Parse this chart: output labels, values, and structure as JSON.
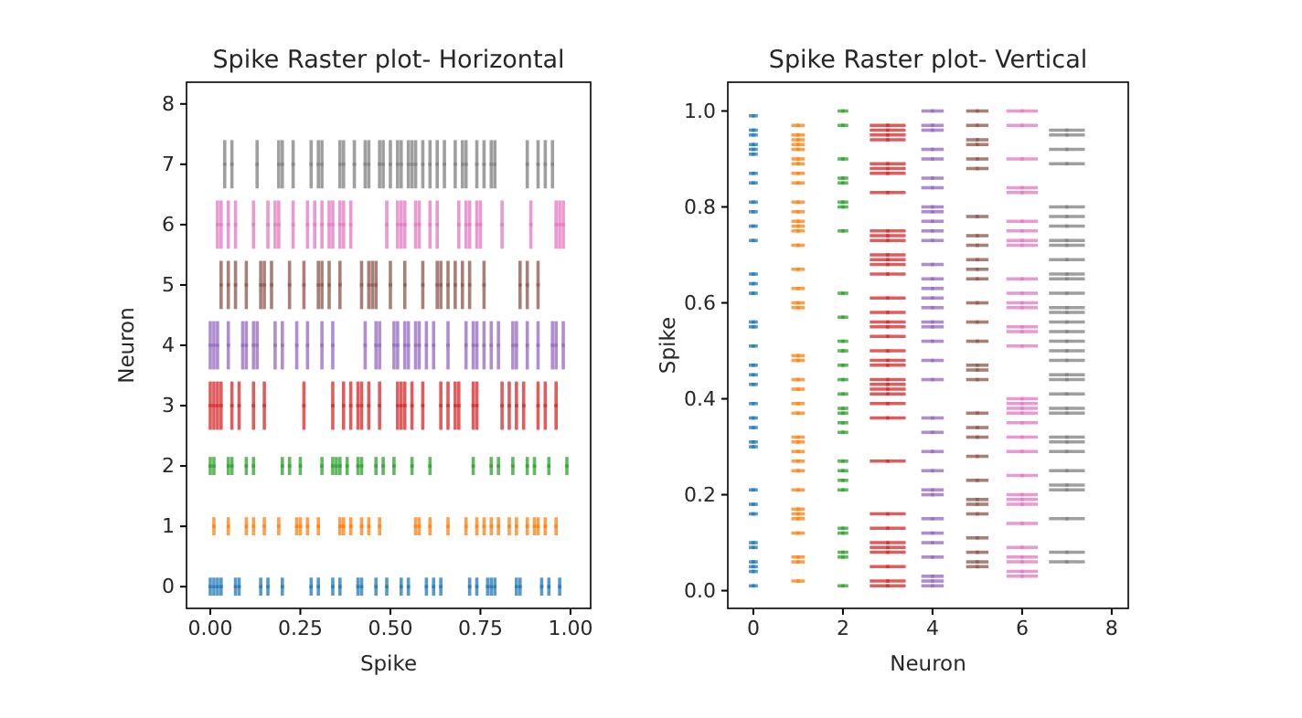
{
  "chart_data": [
    {
      "type": "scatter",
      "title": "Spike Raster plot- Horizontal",
      "xlabel": "Spike",
      "ylabel": "Neuron",
      "xlim": [
        -0.066,
        1.056
      ],
      "ylim": [
        -0.36,
        8.36
      ],
      "xticks": [
        {
          "value": 0,
          "label": "0.00"
        },
        {
          "value": 0.25,
          "label": "0.25"
        },
        {
          "value": 0.5,
          "label": "0.50"
        },
        {
          "value": 0.75,
          "label": "0.75"
        },
        {
          "value": 1,
          "label": "1.00"
        }
      ],
      "yticks": [
        0,
        1,
        2,
        3,
        4,
        5,
        6,
        7,
        8
      ],
      "series": [
        {
          "color": "#1f77b4",
          "x": [
            0.0,
            0.01,
            0.02,
            0.03,
            0.07,
            0.08,
            0.14,
            0.16,
            0.2,
            0.28,
            0.3,
            0.34,
            0.36,
            0.41,
            0.42,
            0.46,
            0.49,
            0.53,
            0.55,
            0.6,
            0.62,
            0.64,
            0.72,
            0.74,
            0.77,
            0.78,
            0.79,
            0.85,
            0.86,
            0.92,
            0.94,
            0.97
          ],
          "values": [
            0,
            0,
            0,
            0,
            0,
            0,
            0,
            0,
            0,
            0,
            0,
            0,
            0,
            0,
            0,
            0,
            0,
            0,
            0,
            0,
            0,
            0,
            0,
            0,
            0,
            0,
            0,
            0,
            0,
            0,
            0,
            0
          ],
          "errors": [
            0.15,
            0.15,
            0.15,
            0.15,
            0.15,
            0.15,
            0.15,
            0.15,
            0.15,
            0.15,
            0.15,
            0.15,
            0.15,
            0.15,
            0.15,
            0.15,
            0.15,
            0.15,
            0.15,
            0.15,
            0.15,
            0.15,
            0.15,
            0.15,
            0.15,
            0.15,
            0.15,
            0.15,
            0.15,
            0.15,
            0.15,
            0.15
          ]
        },
        {
          "color": "#ff7f0e",
          "x": [
            0.01,
            0.05,
            0.1,
            0.12,
            0.15,
            0.19,
            0.24,
            0.25,
            0.27,
            0.3,
            0.36,
            0.37,
            0.39,
            0.42,
            0.44,
            0.47,
            0.57,
            0.58,
            0.61,
            0.66,
            0.71,
            0.74,
            0.76,
            0.78,
            0.8,
            0.83,
            0.85,
            0.88,
            0.9,
            0.91,
            0.93,
            0.96
          ],
          "values": [
            1,
            1,
            1,
            1,
            1,
            1,
            1,
            1,
            1,
            1,
            1,
            1,
            1,
            1,
            1,
            1,
            1,
            1,
            1,
            1,
            1,
            1,
            1,
            1,
            1,
            1,
            1,
            1,
            1,
            1,
            1,
            1
          ],
          "errors": [
            0.15,
            0.15,
            0.15,
            0.15,
            0.15,
            0.15,
            0.15,
            0.15,
            0.15,
            0.15,
            0.15,
            0.15,
            0.15,
            0.15,
            0.15,
            0.15,
            0.15,
            0.15,
            0.15,
            0.15,
            0.15,
            0.15,
            0.15,
            0.15,
            0.15,
            0.15,
            0.15,
            0.15,
            0.15,
            0.15,
            0.15,
            0.15
          ]
        },
        {
          "color": "#2ca02c",
          "x": [
            0.0,
            0.01,
            0.05,
            0.06,
            0.1,
            0.12,
            0.2,
            0.22,
            0.25,
            0.31,
            0.34,
            0.35,
            0.36,
            0.38,
            0.41,
            0.42,
            0.46,
            0.48,
            0.51,
            0.56,
            0.61,
            0.73,
            0.78,
            0.8,
            0.84,
            0.88,
            0.9,
            0.94,
            0.99
          ],
          "values": [
            2,
            2,
            2,
            2,
            2,
            2,
            2,
            2,
            2,
            2,
            2,
            2,
            2,
            2,
            2,
            2,
            2,
            2,
            2,
            2,
            2,
            2,
            2,
            2,
            2,
            2,
            2,
            2,
            2
          ],
          "errors": [
            0.15,
            0.15,
            0.15,
            0.15,
            0.15,
            0.15,
            0.15,
            0.15,
            0.15,
            0.15,
            0.15,
            0.15,
            0.15,
            0.15,
            0.15,
            0.15,
            0.15,
            0.15,
            0.15,
            0.15,
            0.15,
            0.15,
            0.15,
            0.15,
            0.15,
            0.15,
            0.15,
            0.15,
            0.15
          ]
        },
        {
          "color": "#d62728",
          "x": [
            0.0,
            0.01,
            0.02,
            0.03,
            0.06,
            0.08,
            0.12,
            0.15,
            0.26,
            0.34,
            0.37,
            0.39,
            0.41,
            0.42,
            0.44,
            0.47,
            0.52,
            0.53,
            0.54,
            0.56,
            0.59,
            0.64,
            0.66,
            0.68,
            0.69,
            0.73,
            0.74,
            0.81,
            0.83,
            0.85,
            0.87,
            0.91,
            0.93,
            0.96
          ],
          "values": [
            3,
            3,
            3,
            3,
            3,
            3,
            3,
            3,
            3,
            3,
            3,
            3,
            3,
            3,
            3,
            3,
            3,
            3,
            3,
            3,
            3,
            3,
            3,
            3,
            3,
            3,
            3,
            3,
            3,
            3,
            3,
            3,
            3,
            3
          ],
          "errors": [
            0.4,
            0.4,
            0.4,
            0.4,
            0.4,
            0.4,
            0.4,
            0.4,
            0.4,
            0.4,
            0.4,
            0.4,
            0.4,
            0.4,
            0.4,
            0.4,
            0.4,
            0.4,
            0.4,
            0.4,
            0.4,
            0.4,
            0.4,
            0.4,
            0.4,
            0.4,
            0.4,
            0.4,
            0.4,
            0.4,
            0.4,
            0.4,
            0.4,
            0.4
          ]
        },
        {
          "color": "#9467bd",
          "x": [
            0.0,
            0.01,
            0.02,
            0.05,
            0.09,
            0.1,
            0.12,
            0.13,
            0.18,
            0.2,
            0.24,
            0.27,
            0.31,
            0.34,
            0.43,
            0.46,
            0.47,
            0.51,
            0.52,
            0.54,
            0.55,
            0.57,
            0.58,
            0.6,
            0.62,
            0.66,
            0.71,
            0.73,
            0.74,
            0.76,
            0.78,
            0.8,
            0.84,
            0.85,
            0.88,
            0.91,
            0.95,
            0.96,
            0.98
          ],
          "values": [
            4,
            4,
            4,
            4,
            4,
            4,
            4,
            4,
            4,
            4,
            4,
            4,
            4,
            4,
            4,
            4,
            4,
            4,
            4,
            4,
            4,
            4,
            4,
            4,
            4,
            4,
            4,
            4,
            4,
            4,
            4,
            4,
            4,
            4,
            4,
            4,
            4,
            4,
            4
          ],
          "errors": [
            0.4,
            0.4,
            0.4,
            0.4,
            0.4,
            0.4,
            0.4,
            0.4,
            0.4,
            0.4,
            0.4,
            0.4,
            0.4,
            0.4,
            0.4,
            0.4,
            0.4,
            0.4,
            0.4,
            0.4,
            0.4,
            0.4,
            0.4,
            0.4,
            0.4,
            0.4,
            0.4,
            0.4,
            0.4,
            0.4,
            0.4,
            0.4,
            0.4,
            0.4,
            0.4,
            0.4,
            0.4,
            0.4,
            0.4
          ]
        },
        {
          "color": "#8c564b",
          "x": [
            0.03,
            0.05,
            0.07,
            0.1,
            0.14,
            0.15,
            0.17,
            0.22,
            0.26,
            0.3,
            0.31,
            0.33,
            0.36,
            0.42,
            0.44,
            0.45,
            0.46,
            0.5,
            0.54,
            0.59,
            0.63,
            0.64,
            0.66,
            0.68,
            0.7,
            0.72,
            0.76,
            0.86,
            0.88,
            0.91
          ],
          "values": [
            5,
            5,
            5,
            5,
            5,
            5,
            5,
            5,
            5,
            5,
            5,
            5,
            5,
            5,
            5,
            5,
            5,
            5,
            5,
            5,
            5,
            5,
            5,
            5,
            5,
            5,
            5,
            5,
            5,
            5
          ],
          "errors": [
            0.4,
            0.4,
            0.4,
            0.4,
            0.4,
            0.4,
            0.4,
            0.4,
            0.4,
            0.4,
            0.4,
            0.4,
            0.4,
            0.4,
            0.4,
            0.4,
            0.4,
            0.4,
            0.4,
            0.4,
            0.4,
            0.4,
            0.4,
            0.4,
            0.4,
            0.4,
            0.4,
            0.4,
            0.4,
            0.4
          ]
        },
        {
          "color": "#e377c2",
          "x": [
            0.02,
            0.03,
            0.05,
            0.07,
            0.12,
            0.16,
            0.18,
            0.19,
            0.23,
            0.27,
            0.29,
            0.31,
            0.33,
            0.34,
            0.36,
            0.37,
            0.39,
            0.49,
            0.52,
            0.53,
            0.54,
            0.57,
            0.58,
            0.61,
            0.63,
            0.69,
            0.71,
            0.72,
            0.74,
            0.75,
            0.81,
            0.89,
            0.96,
            0.97,
            0.98
          ],
          "values": [
            6,
            6,
            6,
            6,
            6,
            6,
            6,
            6,
            6,
            6,
            6,
            6,
            6,
            6,
            6,
            6,
            6,
            6,
            6,
            6,
            6,
            6,
            6,
            6,
            6,
            6,
            6,
            6,
            6,
            6,
            6,
            6,
            6,
            6,
            6
          ],
          "errors": [
            0.4,
            0.4,
            0.4,
            0.4,
            0.4,
            0.4,
            0.4,
            0.4,
            0.4,
            0.4,
            0.4,
            0.4,
            0.4,
            0.4,
            0.4,
            0.4,
            0.4,
            0.4,
            0.4,
            0.4,
            0.4,
            0.4,
            0.4,
            0.4,
            0.4,
            0.4,
            0.4,
            0.4,
            0.4,
            0.4,
            0.4,
            0.4,
            0.4,
            0.4,
            0.4
          ]
        },
        {
          "color": "#7f7f7f",
          "x": [
            0.04,
            0.06,
            0.13,
            0.19,
            0.2,
            0.23,
            0.28,
            0.3,
            0.31,
            0.36,
            0.37,
            0.4,
            0.43,
            0.44,
            0.47,
            0.48,
            0.5,
            0.52,
            0.53,
            0.55,
            0.56,
            0.57,
            0.59,
            0.61,
            0.63,
            0.65,
            0.68,
            0.7,
            0.71,
            0.74,
            0.76,
            0.78,
            0.79,
            0.88,
            0.91,
            0.93,
            0.95
          ],
          "values": [
            7,
            7,
            7,
            7,
            7,
            7,
            7,
            7,
            7,
            7,
            7,
            7,
            7,
            7,
            7,
            7,
            7,
            7,
            7,
            7,
            7,
            7,
            7,
            7,
            7,
            7,
            7,
            7,
            7,
            7,
            7,
            7,
            7,
            7,
            7,
            7,
            7
          ],
          "errors": [
            0.4,
            0.4,
            0.4,
            0.4,
            0.4,
            0.4,
            0.4,
            0.4,
            0.4,
            0.4,
            0.4,
            0.4,
            0.4,
            0.4,
            0.4,
            0.4,
            0.4,
            0.4,
            0.4,
            0.4,
            0.4,
            0.4,
            0.4,
            0.4,
            0.4,
            0.4,
            0.4,
            0.4,
            0.4,
            0.4,
            0.4,
            0.4,
            0.4,
            0.4,
            0.4,
            0.4,
            0.4
          ]
        }
      ]
    },
    {
      "type": "scatter",
      "title": "Spike Raster plot- Vertical",
      "xlabel": "Neuron",
      "ylabel": "Spike",
      "xlim": [
        -0.57,
        8.37
      ],
      "ylim": [
        -0.037,
        1.06
      ],
      "xticks": [
        0,
        2,
        4,
        6,
        8
      ],
      "yticks": [
        {
          "value": 0,
          "label": "0.0"
        },
        {
          "value": 0.2,
          "label": "0.2"
        },
        {
          "value": 0.4,
          "label": "0.4"
        },
        {
          "value": 0.6,
          "label": "0.6"
        },
        {
          "value": 0.8,
          "label": "0.8"
        },
        {
          "value": 1,
          "label": "1.0"
        }
      ],
      "series": [
        {
          "color": "#1f77b4",
          "values": [
            0.99,
            0.96,
            0.95,
            0.93,
            0.92,
            0.91,
            0.87,
            0.85,
            0.81,
            0.79,
            0.76,
            0.73,
            0.66,
            0.64,
            0.62,
            0.56,
            0.55,
            0.51,
            0.47,
            0.45,
            0.43,
            0.39,
            0.36,
            0.34,
            0.31,
            0.3,
            0.21,
            0.18,
            0.16,
            0.1,
            0.09,
            0.06,
            0.05,
            0.04,
            0.01
          ],
          "x": [
            0,
            0,
            0,
            0,
            0,
            0,
            0,
            0,
            0,
            0,
            0,
            0,
            0,
            0,
            0,
            0,
            0,
            0,
            0,
            0,
            0,
            0,
            0,
            0,
            0,
            0,
            0,
            0,
            0,
            0,
            0,
            0,
            0,
            0,
            0
          ],
          "xerrors": [
            0.1,
            0.1,
            0.1,
            0.1,
            0.1,
            0.1,
            0.1,
            0.1,
            0.1,
            0.1,
            0.1,
            0.1,
            0.1,
            0.1,
            0.1,
            0.1,
            0.1,
            0.1,
            0.1,
            0.1,
            0.1,
            0.1,
            0.1,
            0.1,
            0.1,
            0.1,
            0.1,
            0.1,
            0.1,
            0.1,
            0.1,
            0.1,
            0.1,
            0.1,
            0.1
          ]
        },
        {
          "color": "#ff7f0e",
          "values": [
            0.97,
            0.95,
            0.94,
            0.93,
            0.92,
            0.9,
            0.89,
            0.87,
            0.85,
            0.81,
            0.79,
            0.77,
            0.76,
            0.75,
            0.72,
            0.67,
            0.63,
            0.6,
            0.59,
            0.49,
            0.48,
            0.44,
            0.42,
            0.39,
            0.37,
            0.32,
            0.31,
            0.29,
            0.27,
            0.25,
            0.21,
            0.17,
            0.16,
            0.15,
            0.12,
            0.07,
            0.06,
            0.02
          ],
          "x": [
            1,
            1,
            1,
            1,
            1,
            1,
            1,
            1,
            1,
            1,
            1,
            1,
            1,
            1,
            1,
            1,
            1,
            1,
            1,
            1,
            1,
            1,
            1,
            1,
            1,
            1,
            1,
            1,
            1,
            1,
            1,
            1,
            1,
            1,
            1,
            1,
            1,
            1
          ],
          "xerrors": [
            0.15,
            0.15,
            0.15,
            0.15,
            0.15,
            0.15,
            0.15,
            0.15,
            0.15,
            0.15,
            0.15,
            0.15,
            0.15,
            0.15,
            0.15,
            0.15,
            0.15,
            0.15,
            0.15,
            0.15,
            0.15,
            0.15,
            0.15,
            0.15,
            0.15,
            0.15,
            0.15,
            0.15,
            0.15,
            0.15,
            0.15,
            0.15,
            0.15,
            0.15,
            0.15,
            0.15,
            0.15,
            0.15
          ]
        },
        {
          "color": "#2ca02c",
          "values": [
            1.0,
            0.97,
            0.9,
            0.86,
            0.85,
            0.81,
            0.8,
            0.75,
            0.62,
            0.57,
            0.52,
            0.5,
            0.47,
            0.44,
            0.41,
            0.38,
            0.37,
            0.35,
            0.33,
            0.27,
            0.25,
            0.23,
            0.21,
            0.13,
            0.12,
            0.08,
            0.07,
            0.01
          ],
          "x": [
            2,
            2,
            2,
            2,
            2,
            2,
            2,
            2,
            2,
            2,
            2,
            2,
            2,
            2,
            2,
            2,
            2,
            2,
            2,
            2,
            2,
            2,
            2,
            2,
            2,
            2,
            2,
            2
          ],
          "xerrors": [
            0.12,
            0.12,
            0.12,
            0.12,
            0.12,
            0.12,
            0.12,
            0.12,
            0.12,
            0.12,
            0.12,
            0.12,
            0.12,
            0.12,
            0.12,
            0.12,
            0.12,
            0.12,
            0.12,
            0.12,
            0.12,
            0.12,
            0.12,
            0.12,
            0.12,
            0.12,
            0.12,
            0.12
          ]
        },
        {
          "color": "#d62728",
          "values": [
            0.97,
            0.96,
            0.95,
            0.94,
            0.89,
            0.88,
            0.87,
            0.83,
            0.75,
            0.74,
            0.73,
            0.7,
            0.69,
            0.68,
            0.66,
            0.61,
            0.58,
            0.56,
            0.55,
            0.53,
            0.5,
            0.48,
            0.47,
            0.44,
            0.43,
            0.42,
            0.41,
            0.39,
            0.36,
            0.27,
            0.16,
            0.13,
            0.1,
            0.09,
            0.08,
            0.05,
            0.02,
            0.01
          ],
          "x": [
            3,
            3,
            3,
            3,
            3,
            3,
            3,
            3,
            3,
            3,
            3,
            3,
            3,
            3,
            3,
            3,
            3,
            3,
            3,
            3,
            3,
            3,
            3,
            3,
            3,
            3,
            3,
            3,
            3,
            3,
            3,
            3,
            3,
            3,
            3,
            3,
            3,
            3
          ],
          "xerrors": [
            0.4,
            0.4,
            0.4,
            0.4,
            0.4,
            0.4,
            0.4,
            0.4,
            0.4,
            0.4,
            0.4,
            0.4,
            0.4,
            0.4,
            0.4,
            0.4,
            0.4,
            0.4,
            0.4,
            0.4,
            0.4,
            0.4,
            0.4,
            0.4,
            0.4,
            0.4,
            0.4,
            0.4,
            0.4,
            0.4,
            0.4,
            0.4,
            0.4,
            0.4,
            0.4,
            0.4,
            0.4,
            0.4
          ]
        },
        {
          "color": "#9467bd",
          "values": [
            1.0,
            0.97,
            0.96,
            0.92,
            0.9,
            0.86,
            0.84,
            0.8,
            0.79,
            0.77,
            0.75,
            0.73,
            0.68,
            0.65,
            0.63,
            0.61,
            0.59,
            0.56,
            0.55,
            0.52,
            0.48,
            0.44,
            0.36,
            0.33,
            0.29,
            0.25,
            0.21,
            0.2,
            0.15,
            0.12,
            0.1,
            0.07,
            0.03,
            0.02,
            0.01
          ],
          "x": [
            4,
            4,
            4,
            4,
            4,
            4,
            4,
            4,
            4,
            4,
            4,
            4,
            4,
            4,
            4,
            4,
            4,
            4,
            4,
            4,
            4,
            4,
            4,
            4,
            4,
            4,
            4,
            4,
            4,
            4,
            4,
            4,
            4,
            4,
            4
          ],
          "xerrors": [
            0.25,
            0.25,
            0.25,
            0.25,
            0.25,
            0.25,
            0.25,
            0.25,
            0.25,
            0.25,
            0.25,
            0.25,
            0.25,
            0.25,
            0.25,
            0.25,
            0.25,
            0.25,
            0.25,
            0.25,
            0.25,
            0.25,
            0.25,
            0.25,
            0.25,
            0.25,
            0.25,
            0.25,
            0.25,
            0.25,
            0.25,
            0.25,
            0.25,
            0.25,
            0.25
          ]
        },
        {
          "color": "#8c564b",
          "values": [
            1.0,
            0.97,
            0.94,
            0.93,
            0.9,
            0.88,
            0.78,
            0.74,
            0.72,
            0.69,
            0.67,
            0.65,
            0.6,
            0.56,
            0.52,
            0.47,
            0.46,
            0.44,
            0.37,
            0.34,
            0.32,
            0.28,
            0.23,
            0.19,
            0.18,
            0.16,
            0.11,
            0.08,
            0.06,
            0.05
          ],
          "x": [
            5,
            5,
            5,
            5,
            5,
            5,
            5,
            5,
            5,
            5,
            5,
            5,
            5,
            5,
            5,
            5,
            5,
            5,
            5,
            5,
            5,
            5,
            5,
            5,
            5,
            5,
            5,
            5,
            5,
            5
          ],
          "xerrors": [
            0.25,
            0.25,
            0.25,
            0.25,
            0.25,
            0.25,
            0.25,
            0.25,
            0.25,
            0.25,
            0.25,
            0.25,
            0.25,
            0.25,
            0.25,
            0.25,
            0.25,
            0.25,
            0.25,
            0.25,
            0.25,
            0.25,
            0.25,
            0.25,
            0.25,
            0.25,
            0.25,
            0.25,
            0.25,
            0.25
          ]
        },
        {
          "color": "#e377c2",
          "values": [
            1.0,
            0.97,
            0.9,
            0.84,
            0.83,
            0.77,
            0.75,
            0.73,
            0.72,
            0.65,
            0.62,
            0.6,
            0.59,
            0.55,
            0.54,
            0.51,
            0.4,
            0.39,
            0.38,
            0.37,
            0.35,
            0.32,
            0.29,
            0.24,
            0.2,
            0.19,
            0.18,
            0.14,
            0.09,
            0.07,
            0.06,
            0.04,
            0.03
          ],
          "x": [
            6,
            6,
            6,
            6,
            6,
            6,
            6,
            6,
            6,
            6,
            6,
            6,
            6,
            6,
            6,
            6,
            6,
            6,
            6,
            6,
            6,
            6,
            6,
            6,
            6,
            6,
            6,
            6,
            6,
            6,
            6,
            6,
            6
          ],
          "xerrors": [
            0.35,
            0.35,
            0.35,
            0.35,
            0.35,
            0.35,
            0.35,
            0.35,
            0.35,
            0.35,
            0.35,
            0.35,
            0.35,
            0.35,
            0.35,
            0.35,
            0.35,
            0.35,
            0.35,
            0.35,
            0.35,
            0.35,
            0.35,
            0.35,
            0.35,
            0.35,
            0.35,
            0.35,
            0.35,
            0.35,
            0.35,
            0.35,
            0.35
          ]
        },
        {
          "color": "#7f7f7f",
          "values": [
            0.96,
            0.95,
            0.92,
            0.89,
            0.8,
            0.78,
            0.76,
            0.73,
            0.72,
            0.69,
            0.66,
            0.65,
            0.62,
            0.59,
            0.58,
            0.56,
            0.54,
            0.52,
            0.5,
            0.48,
            0.45,
            0.44,
            0.41,
            0.38,
            0.37,
            0.32,
            0.31,
            0.29,
            0.25,
            0.22,
            0.21,
            0.15,
            0.08,
            0.06
          ],
          "x": [
            7,
            7,
            7,
            7,
            7,
            7,
            7,
            7,
            7,
            7,
            7,
            7,
            7,
            7,
            7,
            7,
            7,
            7,
            7,
            7,
            7,
            7,
            7,
            7,
            7,
            7,
            7,
            7,
            7,
            7,
            7,
            7,
            7,
            7
          ],
          "xerrors": [
            0.4,
            0.4,
            0.4,
            0.4,
            0.4,
            0.4,
            0.4,
            0.4,
            0.4,
            0.4,
            0.4,
            0.4,
            0.4,
            0.4,
            0.4,
            0.4,
            0.4,
            0.4,
            0.4,
            0.4,
            0.4,
            0.4,
            0.4,
            0.4,
            0.4,
            0.4,
            0.4,
            0.4,
            0.4,
            0.4,
            0.4,
            0.4,
            0.4,
            0.4
          ]
        }
      ]
    }
  ]
}
